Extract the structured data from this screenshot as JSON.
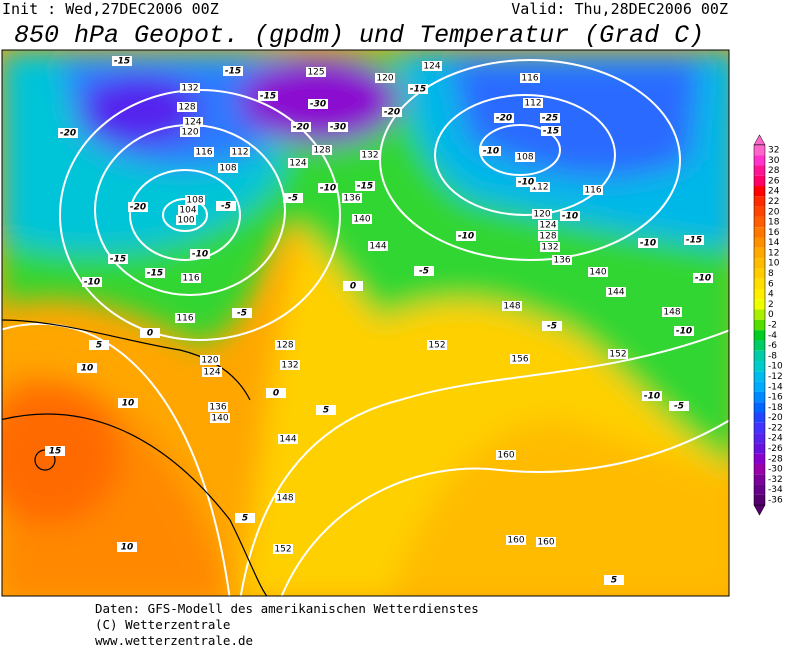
{
  "header": {
    "init": "Init : Wed,27DEC2006 00Z",
    "valid": "Valid: Thu,28DEC2006 00Z",
    "title": "850 hPa Geopot. (gpdm) und Temperatur (Grad C)"
  },
  "colorbar": {
    "ticks": [
      32,
      30,
      28,
      26,
      24,
      22,
      20,
      18,
      16,
      14,
      12,
      10,
      8,
      6,
      4,
      2,
      0,
      -2,
      -4,
      -6,
      -8,
      -10,
      -12,
      -14,
      -16,
      -18,
      -20,
      -22,
      -24,
      -26,
      -28,
      -30,
      -32,
      -34,
      -36
    ],
    "colors": [
      "#ff66cc",
      "#ff33cc",
      "#ff1493",
      "#ff0066",
      "#ff0000",
      "#ff2a00",
      "#ff4400",
      "#ff5e00",
      "#ff7700",
      "#ff9000",
      "#ffaa00",
      "#ffbb00",
      "#ffcc00",
      "#ffdd00",
      "#ffee00",
      "#eeff00",
      "#aaee00",
      "#55dd00",
      "#00cc22",
      "#00cc66",
      "#00ccaa",
      "#00cccc",
      "#00bbee",
      "#00aaff",
      "#0088ff",
      "#0066ff",
      "#2244ff",
      "#4433ff",
      "#5522ee",
      "#6611dd",
      "#8800cc",
      "#9900aa",
      "#7a0099",
      "#660088",
      "#55006e"
    ]
  },
  "map": {
    "geopotential_labels": [
      "132",
      "128",
      "124",
      "120",
      "116",
      "112",
      "108",
      "108",
      "104",
      "100",
      "116",
      "116",
      "120",
      "124",
      "136",
      "140",
      "144",
      "148",
      "152",
      "128",
      "132",
      "124",
      "128",
      "132",
      "136",
      "140",
      "144",
      "148",
      "152",
      "156",
      "160",
      "160",
      "160",
      "152",
      "148",
      "144",
      "140",
      "136",
      "132",
      "128",
      "124",
      "120",
      "116",
      "112",
      "108",
      "112",
      "116",
      "120",
      "124",
      "125"
    ],
    "temperature_labels": [
      "-15",
      "-15",
      "-15",
      "-20",
      "-20",
      "-15",
      "-15",
      "-10",
      "-5",
      "-10",
      "-5",
      "0",
      "5",
      "10",
      "10",
      "15",
      "10",
      "5",
      "5",
      "0",
      "0",
      "-5",
      "-10",
      "-15",
      "-10",
      "-5",
      "-5",
      "-10",
      "-10",
      "-10",
      "-15",
      "-10",
      "-10",
      "-10",
      "-10",
      "-15",
      "-20",
      "-25",
      "-30",
      "-30",
      "-20",
      "-15",
      "-20",
      "5",
      "-5"
    ]
  },
  "footer": {
    "line1": "Daten: GFS-Modell des amerikanischen Wetterdienstes",
    "line2": "(C) Wetterzentrale",
    "line3": "www.wetterzentrale.de"
  }
}
